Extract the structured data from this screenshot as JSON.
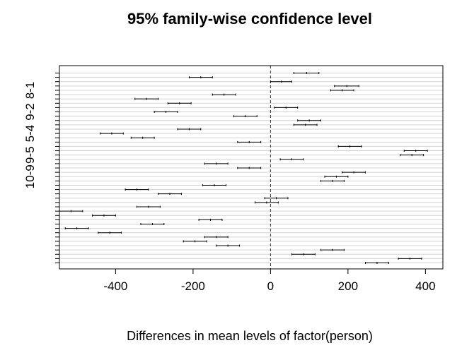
{
  "chart_data": {
    "type": "interval",
    "title": "95% family-wise confidence level",
    "xlabel": "Differences in mean levels of factor(person)",
    "ylabel": "",
    "xlim": [
      -545,
      445
    ],
    "xticks": [
      -400,
      -200,
      0,
      200,
      400
    ],
    "reference_line": 0,
    "y_tick_labels": [
      "8-1",
      "9-2",
      "5-4",
      "9-5",
      "10-9"
    ],
    "y_tick_positions": [
      5,
      10,
      15,
      20,
      25
    ],
    "n_comparisons": 45,
    "intervals": [
      {
        "pos": 1,
        "lwr": 60,
        "mid": 93,
        "upr": 125
      },
      {
        "pos": 2,
        "lwr": -210,
        "mid": -180,
        "upr": -150
      },
      {
        "pos": 3,
        "lwr": 0,
        "mid": 28,
        "upr": 55
      },
      {
        "pos": 4,
        "lwr": 165,
        "mid": 197,
        "upr": 228
      },
      {
        "pos": 5,
        "lwr": 155,
        "mid": 185,
        "upr": 215
      },
      {
        "pos": 6,
        "lwr": -150,
        "mid": -120,
        "upr": -90
      },
      {
        "pos": 7,
        "lwr": -350,
        "mid": -320,
        "upr": -290
      },
      {
        "pos": 8,
        "lwr": -265,
        "mid": -235,
        "upr": -205
      },
      {
        "pos": 9,
        "lwr": 10,
        "mid": 40,
        "upr": 70
      },
      {
        "pos": 10,
        "lwr": -300,
        "mid": -270,
        "upr": -240
      },
      {
        "pos": 11,
        "lwr": -95,
        "mid": -65,
        "upr": -35
      },
      {
        "pos": 12,
        "lwr": 70,
        "mid": 100,
        "upr": 130
      },
      {
        "pos": 13,
        "lwr": 60,
        "mid": 90,
        "upr": 120
      },
      {
        "pos": 14,
        "lwr": -240,
        "mid": -210,
        "upr": -180
      },
      {
        "pos": 15,
        "lwr": -440,
        "mid": -410,
        "upr": -380
      },
      {
        "pos": 16,
        "lwr": -360,
        "mid": -330,
        "upr": -300
      },
      {
        "pos": 17,
        "lwr": -85,
        "mid": -55,
        "upr": -25
      },
      {
        "pos": 18,
        "lwr": 175,
        "mid": 205,
        "upr": 235
      },
      {
        "pos": 19,
        "lwr": 345,
        "mid": 375,
        "upr": 405
      },
      {
        "pos": 20,
        "lwr": 335,
        "mid": 365,
        "upr": 395
      },
      {
        "pos": 21,
        "lwr": 25,
        "mid": 55,
        "upr": 85
      },
      {
        "pos": 22,
        "lwr": -170,
        "mid": -140,
        "upr": -110
      },
      {
        "pos": 23,
        "lwr": -85,
        "mid": -55,
        "upr": -25
      },
      {
        "pos": 24,
        "lwr": 185,
        "mid": 215,
        "upr": 245
      },
      {
        "pos": 25,
        "lwr": 140,
        "mid": 170,
        "upr": 200
      },
      {
        "pos": 26,
        "lwr": 130,
        "mid": 160,
        "upr": 190
      },
      {
        "pos": 27,
        "lwr": -175,
        "mid": -145,
        "upr": -115
      },
      {
        "pos": 28,
        "lwr": -375,
        "mid": -345,
        "upr": -315
      },
      {
        "pos": 29,
        "lwr": -290,
        "mid": -260,
        "upr": -230
      },
      {
        "pos": 30,
        "lwr": -15,
        "mid": 15,
        "upr": 45
      },
      {
        "pos": 31,
        "lwr": -40,
        "mid": -10,
        "upr": 20
      },
      {
        "pos": 32,
        "lwr": -345,
        "mid": -315,
        "upr": -285
      },
      {
        "pos": 33,
        "lwr": -545,
        "mid": -515,
        "upr": -485
      },
      {
        "pos": 34,
        "lwr": -460,
        "mid": -430,
        "upr": -400
      },
      {
        "pos": 35,
        "lwr": -185,
        "mid": -155,
        "upr": -125
      },
      {
        "pos": 36,
        "lwr": -335,
        "mid": -305,
        "upr": -275
      },
      {
        "pos": 37,
        "lwr": -530,
        "mid": -500,
        "upr": -470
      },
      {
        "pos": 38,
        "lwr": -445,
        "mid": -415,
        "upr": -385
      },
      {
        "pos": 39,
        "lwr": -170,
        "mid": -140,
        "upr": -110
      },
      {
        "pos": 40,
        "lwr": -225,
        "mid": -195,
        "upr": -165
      },
      {
        "pos": 41,
        "lwr": -140,
        "mid": -110,
        "upr": -80
      },
      {
        "pos": 42,
        "lwr": 130,
        "mid": 160,
        "upr": 190
      },
      {
        "pos": 43,
        "lwr": 55,
        "mid": 85,
        "upr": 115
      },
      {
        "pos": 44,
        "lwr": 330,
        "mid": 360,
        "upr": 390
      },
      {
        "pos": 45,
        "lwr": 245,
        "mid": 275,
        "upr": 305
      }
    ]
  }
}
